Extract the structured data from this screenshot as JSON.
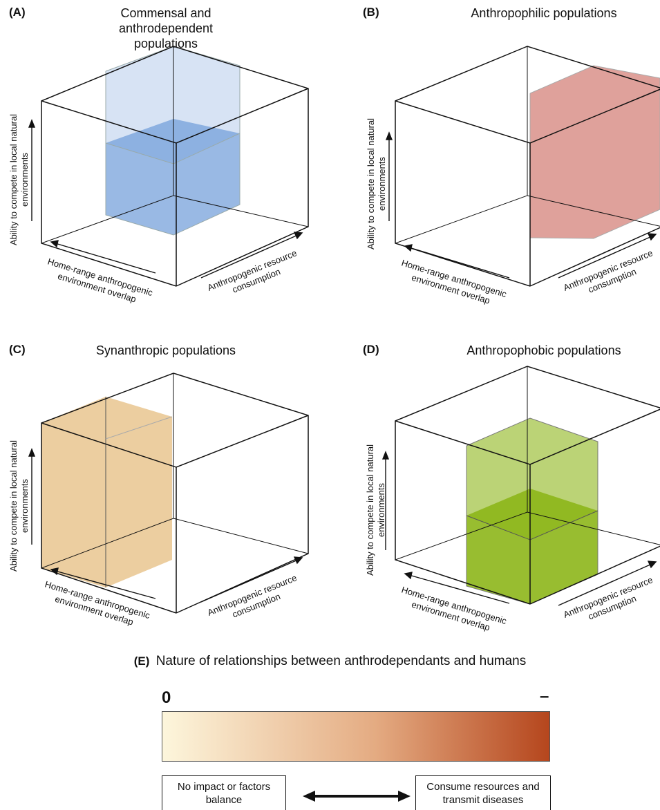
{
  "panels": [
    {
      "label": "(A)",
      "title": "Commensal and anthrodependent populations",
      "fill": "#6e9bd8"
    },
    {
      "label": "(B)",
      "title": "Anthropophilic populations",
      "fill": "#d9908a"
    },
    {
      "label": "(C)",
      "title": "Synanthropic populations",
      "fill": "#e9c58f"
    },
    {
      "label": "(D)",
      "title": "Anthropophobic populations",
      "fill": "#8db61a"
    }
  ],
  "axes": {
    "vertical": "Ability to compete in local natural environments",
    "left": "Home-range anthropogenic environment overlap",
    "right": "Anthropogenic resource consumption"
  },
  "scale": {
    "label": "(E)",
    "title": "Nature of relationships between anthrodependants and humans",
    "left_end": "0",
    "right_end": "–",
    "gradient_start": "#fdf6dc",
    "gradient_mid": "#e4ab82",
    "gradient_end": "#b5461d",
    "left_box": "No impact or factors balance",
    "right_box": "Consume resources and transmit diseases"
  }
}
